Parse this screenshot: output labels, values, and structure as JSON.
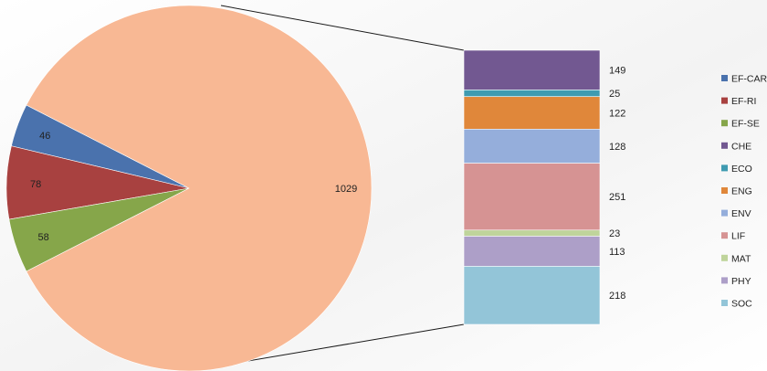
{
  "chart_data": {
    "type": "pie",
    "subtype": "bar-of-pie",
    "pie": {
      "slices": [
        {
          "label": "EF-CAR",
          "value": 46,
          "color": "#4a72ad"
        },
        {
          "label": "EF-RI",
          "value": 78,
          "color": "#a84140"
        },
        {
          "label": "EF-SE",
          "value": 58,
          "color": "#86a64a"
        },
        {
          "label": "",
          "value": 1029,
          "color": "#f8b894"
        }
      ]
    },
    "bar": {
      "segments": [
        {
          "label": "CHE",
          "value": 149,
          "color": "#725891"
        },
        {
          "label": "ECO",
          "value": 25,
          "color": "#3f9bb1"
        },
        {
          "label": "ENG",
          "value": 122,
          "color": "#e0873a"
        },
        {
          "label": "ENV",
          "value": 128,
          "color": "#95aedb"
        },
        {
          "label": "LIF",
          "value": 251,
          "color": "#d69393"
        },
        {
          "label": "MAT",
          "value": 23,
          "color": "#bfd49b"
        },
        {
          "label": "PHY",
          "value": 113,
          "color": "#ad9fc8"
        },
        {
          "label": "SOC",
          "value": 218,
          "color": "#93c5d8"
        }
      ]
    },
    "legend": {
      "placement": "right",
      "items": [
        {
          "label": "EF-CAR",
          "color": "#4a72ad"
        },
        {
          "label": "EF-RI",
          "color": "#a84140"
        },
        {
          "label": "EF-SE",
          "color": "#86a64a"
        },
        {
          "label": "CHE",
          "color": "#725891"
        },
        {
          "label": "ECO",
          "color": "#3f9bb1"
        },
        {
          "label": "ENG",
          "color": "#e0873a"
        },
        {
          "label": "ENV",
          "color": "#95aedb"
        },
        {
          "label": "LIF",
          "color": "#d69393"
        },
        {
          "label": "MAT",
          "color": "#bfd49b"
        },
        {
          "label": "PHY",
          "color": "#ad9fc8"
        },
        {
          "label": "SOC",
          "color": "#93c5d8"
        }
      ]
    },
    "title": "",
    "connector_color": "#1a1a1a"
  }
}
